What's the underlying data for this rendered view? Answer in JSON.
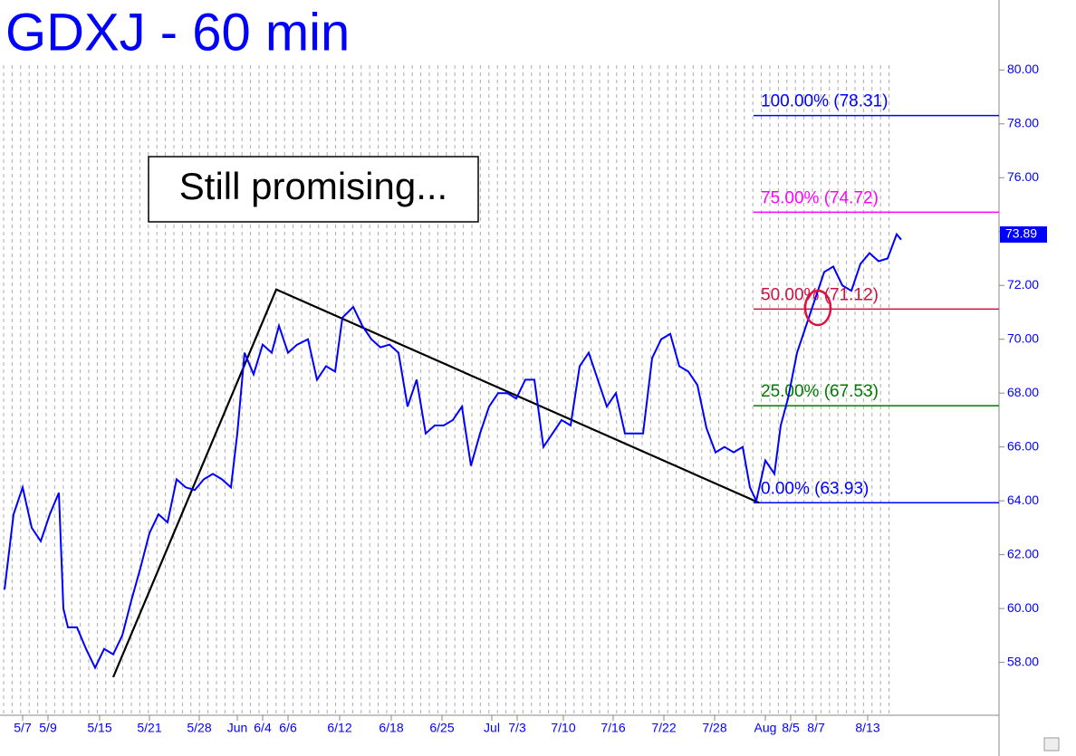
{
  "chart_data": {
    "type": "line",
    "title": "GDXJ - 60 min",
    "annotation": "Still promising...",
    "color": "#0000ff",
    "x": [
      5,
      15,
      25,
      35,
      45,
      55,
      65,
      70,
      75,
      85,
      95,
      105,
      115,
      125,
      135,
      145,
      155,
      165,
      175,
      185,
      195,
      205,
      215,
      225,
      235,
      245,
      255,
      262,
      270,
      280,
      290,
      300,
      308,
      318,
      328,
      340,
      350,
      360,
      370,
      378,
      390,
      400,
      410,
      420,
      430,
      440,
      450,
      460,
      470,
      480,
      490,
      500,
      510,
      520,
      530,
      540,
      550,
      560,
      570,
      580,
      590,
      600,
      610,
      620,
      630,
      640,
      650,
      660,
      670,
      680,
      690,
      700,
      710,
      720,
      730,
      740,
      750,
      760,
      770,
      780,
      790,
      800,
      810,
      820,
      828,
      835,
      845,
      855,
      862,
      870,
      880,
      890,
      900,
      910,
      920,
      930,
      940,
      950,
      960,
      970,
      980,
      990,
      995
    ],
    "values": [
      60.7,
      63.5,
      64.5,
      63,
      62.5,
      63.5,
      64.3,
      60,
      59.3,
      59.3,
      58.5,
      57.8,
      58.5,
      58.3,
      59,
      60.3,
      61.5,
      62.8,
      63.5,
      63.2,
      64.8,
      64.5,
      64.4,
      64.8,
      65,
      64.8,
      64.5,
      66.5,
      69.5,
      68.7,
      69.8,
      69.5,
      70.5,
      69.5,
      69.8,
      70,
      68.5,
      69,
      68.8,
      70.8,
      71.2,
      70.5,
      70,
      69.7,
      69.8,
      69.5,
      67.5,
      68.5,
      66.5,
      66.8,
      66.8,
      67,
      67.5,
      65.3,
      66.5,
      67.5,
      68,
      68,
      67.8,
      68.5,
      68.5,
      66,
      66.5,
      67,
      66.8,
      69,
      69.5,
      68.5,
      67.5,
      68,
      66.5,
      66.5,
      66.5,
      69.3,
      70,
      70.2,
      69,
      68.8,
      68.3,
      66.7,
      65.8,
      66,
      65.8,
      66,
      64.5,
      64,
      65.5,
      65,
      66.8,
      67.8,
      69.5,
      70.5,
      71.5,
      72.5,
      72.7,
      72,
      71.8,
      72.8,
      73.2,
      72.9,
      73,
      73.9,
      73.7
    ],
    "xlim": [
      0,
      1100
    ],
    "ylim": [
      55.7,
      82.6
    ],
    "xticks": [
      {
        "value": 25,
        "label": "5/7"
      },
      {
        "value": 53,
        "label": "5/9"
      },
      {
        "value": 110,
        "label": "5/15"
      },
      {
        "value": 165,
        "label": "5/21"
      },
      {
        "value": 220,
        "label": "5/28"
      },
      {
        "value": 262,
        "label": "Jun"
      },
      {
        "value": 290,
        "label": "6/4"
      },
      {
        "value": 318,
        "label": "6/6"
      },
      {
        "value": 375,
        "label": "6/12"
      },
      {
        "value": 432,
        "label": "6/18"
      },
      {
        "value": 488,
        "label": "6/25"
      },
      {
        "value": 543,
        "label": "Jul"
      },
      {
        "value": 571,
        "label": "7/3"
      },
      {
        "value": 622,
        "label": "7/10"
      },
      {
        "value": 677,
        "label": "7/16"
      },
      {
        "value": 733,
        "label": "7/22"
      },
      {
        "value": 789,
        "label": "7/28"
      },
      {
        "value": 845,
        "label": "Aug"
      },
      {
        "value": 873,
        "label": "8/5"
      },
      {
        "value": 901,
        "label": "8/7"
      },
      {
        "value": 958,
        "label": "8/13"
      }
    ],
    "yticks": [
      {
        "value": 58,
        "label": "58.00"
      },
      {
        "value": 60,
        "label": "60.00"
      },
      {
        "value": 62,
        "label": "62.00"
      },
      {
        "value": 64,
        "label": "64.00"
      },
      {
        "value": 66,
        "label": "66.00"
      },
      {
        "value": 68,
        "label": "68.00"
      },
      {
        "value": 70,
        "label": "70.00"
      },
      {
        "value": 72,
        "label": "72.00"
      },
      {
        "value": 74,
        "label": "74.00"
      },
      {
        "value": 76,
        "label": "76.00"
      },
      {
        "value": 78,
        "label": "78.00"
      },
      {
        "value": 80,
        "label": "80.00"
      }
    ],
    "last_price": 73.89,
    "levels": [
      {
        "label": "100.00% (78.31)",
        "value": 78.31,
        "color": "#0000ff"
      },
      {
        "label": "75.00% (74.72)",
        "value": 74.72,
        "color": "#ff00ff"
      },
      {
        "label": "50.00% (71.12)",
        "value": 71.12,
        "color": "#cc1040"
      },
      {
        "label": "25.00% (67.53)",
        "value": 67.53,
        "color": "#007a00"
      },
      {
        "label": "0.00% (63.93)",
        "value": 63.93,
        "color": "#0000ff"
      }
    ],
    "trendline": {
      "x": [
        125,
        305,
        838
      ],
      "values": [
        57.45,
        71.85,
        63.93
      ]
    }
  }
}
